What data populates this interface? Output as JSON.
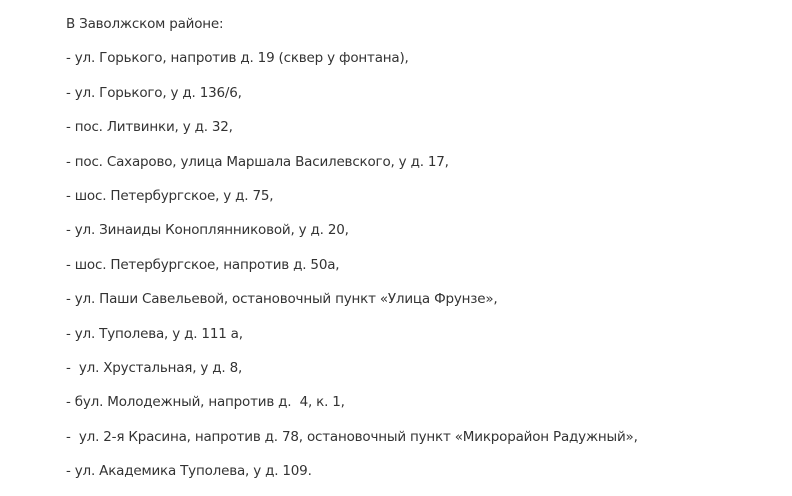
{
  "heading": "В Заволжском районе:",
  "items": [
    "- ул. Горького, напротив д. 19 (сквер у фонтана),",
    "- ул. Горького, у д. 136/6,",
    "- пос. Литвинки, у д. 32,",
    "- пос. Сахарово, улица Маршала Василевского, у д. 17,",
    "- шос. Петербургское, у д. 75,",
    "- ул. Зинаиды Коноплянниковой, у д. 20,",
    "- шос. Петербургское, напротив д. 50а,",
    "- ул. Паши Савельевой, остановочный пункт «Улица Фрунзе»,",
    "- ул. Туполева, у д. 111 а,",
    "-  ул. Хрустальная, у д. 8,",
    "- бул. Молодежный, напротив д.  4, к. 1,",
    "-  ул. 2-я Красина, напротив д. 78, остановочный пункт «Микрорайон Радужный»,",
    "- ул. Академика Туполева, у д. 109."
  ]
}
